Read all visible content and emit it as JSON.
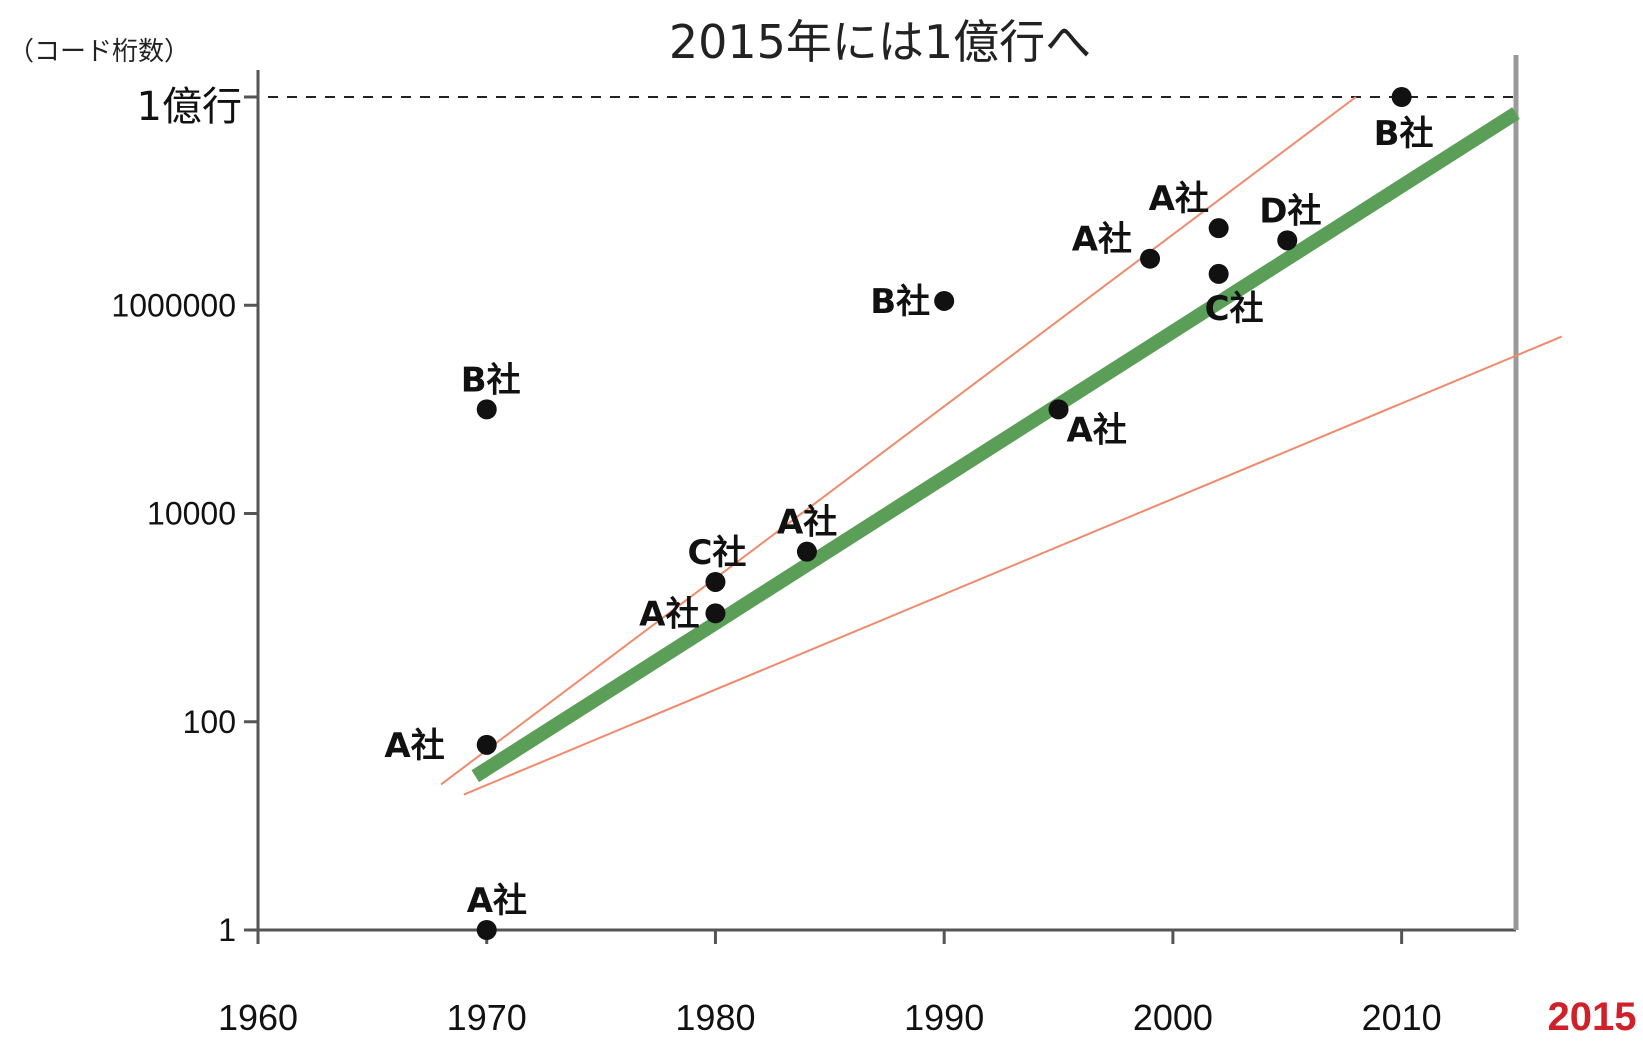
{
  "chart_data": {
    "type": "scatter",
    "title": "2015年には1億行へ",
    "ylabel": "（コード桁数）",
    "y_scale": "log",
    "ylim": [
      1,
      100000000
    ],
    "xlim": [
      1960,
      2015
    ],
    "x_ticks": [
      "1960",
      "1970",
      "1980",
      "1990",
      "2000",
      "2010"
    ],
    "x_highlight_tick": "2015",
    "y_ticks": [
      "1",
      "100",
      "10000",
      "1000000"
    ],
    "y_reference": {
      "label": "1億行",
      "value": 100000000
    },
    "points": [
      {
        "label": "A社",
        "x": 1970,
        "y": 1
      },
      {
        "label": "A社",
        "x": 1970,
        "y": 60
      },
      {
        "label": "B社",
        "x": 1970,
        "y": 100000
      },
      {
        "label": "A社",
        "x": 1980,
        "y": 1100
      },
      {
        "label": "C社",
        "x": 1980,
        "y": 2200
      },
      {
        "label": "A社",
        "x": 1984,
        "y": 4300
      },
      {
        "label": "B社",
        "x": 1990,
        "y": 1100000
      },
      {
        "label": "A社",
        "x": 1995,
        "y": 100000
      },
      {
        "label": "A社",
        "x": 1999,
        "y": 2800000
      },
      {
        "label": "A社",
        "x": 2002,
        "y": 5500000
      },
      {
        "label": "C社",
        "x": 2002,
        "y": 2000000
      },
      {
        "label": "D社",
        "x": 2005,
        "y": 4200000
      },
      {
        "label": "B社",
        "x": 2010,
        "y": 100000000
      }
    ],
    "trend": {
      "x": [
        1969.5,
        2015
      ],
      "y": [
        30,
        70000000
      ]
    },
    "upper_bound": {
      "x": [
        1968,
        2008
      ],
      "y": [
        25,
        100000000
      ]
    },
    "lower_bound": {
      "x": [
        1969,
        2017
      ],
      "y": [
        20,
        500000
      ]
    },
    "colors": {
      "trend": "#5a9e57",
      "bounds": "#f08a6c",
      "points": "#111111",
      "axis": "#555555",
      "highlight": "#d0202a"
    }
  }
}
